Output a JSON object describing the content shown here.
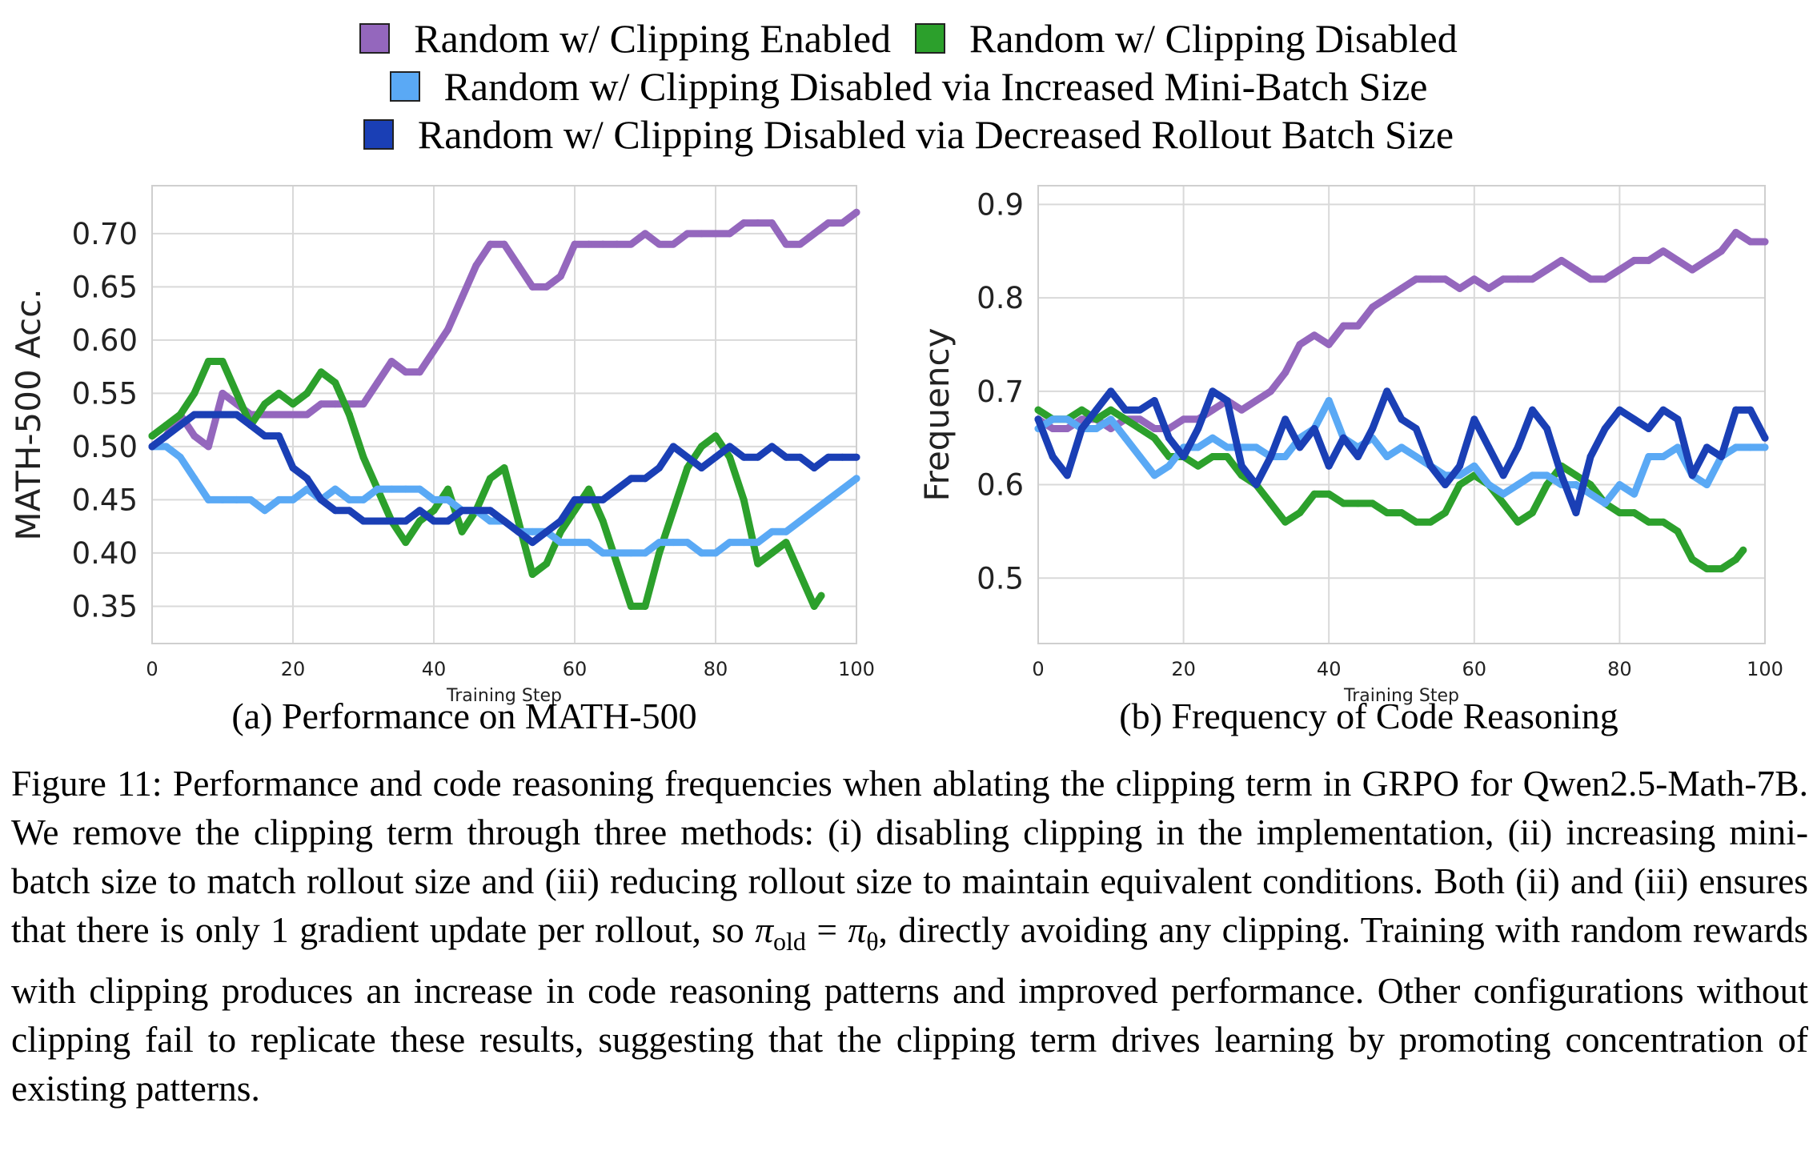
{
  "legend": {
    "rows": [
      [
        "clip_enabled",
        "clip_disabled"
      ],
      [
        "minibatch"
      ],
      [
        "rollout"
      ]
    ]
  },
  "series_styles": {
    "clip_enabled": {
      "label": "Random w/ Clipping Enabled",
      "color": "#9467bd"
    },
    "clip_disabled": {
      "label": "Random w/ Clipping Disabled",
      "color": "#2ca02c"
    },
    "minibatch": {
      "label": "Random w/ Clipping Disabled via Increased Mini-Batch Size",
      "color": "#5aa9f5"
    },
    "rollout": {
      "label": "Random w/ Clipping Disabled via Decreased Rollout Batch Size",
      "color": "#1a3fb5"
    }
  },
  "captions": {
    "a": "(a) Performance on MATH-500",
    "b": "(b) Frequency of Code Reasoning"
  },
  "figure_caption": {
    "lead": "Figure 11: Performance and code reasoning frequencies when ablating the clipping term in GRPO for Qwen2.5-Math-7B. We remove the clipping term through three methods: (i) disabling clipping in the implementation, (ii) increasing mini-batch size to match rollout size and (iii) reducing rollout size to maintain equivalent conditions. Both (ii) and (iii) ensures that there is only 1 gradient update per rollout, so ",
    "pi": "π",
    "old_sub": "old",
    "eq": " = ",
    "theta_sub": "θ",
    "tail": ", directly avoiding any clipping. Training with random rewards with clipping produces an increase in code reasoning patterns and improved performance. Other configurations without clipping fail to replicate these results, suggesting that the clipping term drives learning by promoting concentration of existing patterns."
  },
  "chart_data": [
    {
      "type": "line",
      "xlabel": "Training Step",
      "ylabel": "MATH-500 Acc.",
      "xlim": [
        0,
        100
      ],
      "ylim": [
        0.315,
        0.745
      ],
      "xticks": [
        0,
        20,
        40,
        60,
        80,
        100
      ],
      "xtick_labels": [
        "0",
        "20",
        "40",
        "60",
        "80",
        "100"
      ],
      "yticks": [
        0.35,
        0.4,
        0.45,
        0.5,
        0.55,
        0.6,
        0.65,
        0.7
      ],
      "ytick_labels": [
        "0.35",
        "0.40",
        "0.45",
        "0.50",
        "0.55",
        "0.60",
        "0.65",
        "0.70"
      ],
      "grid": true,
      "series": [
        {
          "key": "clip_enabled",
          "name": "Random w/ Clipping Enabled",
          "x": [
            0,
            2,
            4,
            6,
            8,
            10,
            12,
            14,
            16,
            18,
            20,
            22,
            24,
            26,
            28,
            30,
            32,
            34,
            36,
            38,
            40,
            42,
            44,
            46,
            48,
            50,
            52,
            54,
            56,
            58,
            60,
            62,
            64,
            66,
            68,
            70,
            72,
            74,
            76,
            78,
            80,
            82,
            84,
            86,
            88,
            90,
            92,
            94,
            96,
            98,
            100
          ],
          "y": [
            0.5,
            0.51,
            0.53,
            0.51,
            0.5,
            0.55,
            0.54,
            0.53,
            0.53,
            0.53,
            0.53,
            0.53,
            0.54,
            0.54,
            0.54,
            0.54,
            0.56,
            0.58,
            0.57,
            0.57,
            0.59,
            0.61,
            0.64,
            0.67,
            0.69,
            0.69,
            0.67,
            0.65,
            0.65,
            0.66,
            0.69,
            0.69,
            0.69,
            0.69,
            0.69,
            0.7,
            0.69,
            0.69,
            0.7,
            0.7,
            0.7,
            0.7,
            0.71,
            0.71,
            0.71,
            0.69,
            0.69,
            0.7,
            0.71,
            0.71,
            0.72
          ]
        },
        {
          "key": "clip_disabled",
          "name": "Random w/ Clipping Disabled",
          "x": [
            0,
            2,
            4,
            6,
            8,
            10,
            12,
            14,
            16,
            18,
            20,
            22,
            24,
            26,
            28,
            30,
            32,
            34,
            36,
            38,
            40,
            42,
            44,
            46,
            48,
            50,
            52,
            54,
            56,
            58,
            60,
            62,
            64,
            66,
            68,
            70,
            72,
            74,
            76,
            78,
            80,
            82,
            84,
            86,
            88,
            90,
            92,
            94,
            95
          ],
          "y": [
            0.51,
            0.52,
            0.53,
            0.55,
            0.58,
            0.58,
            0.55,
            0.52,
            0.54,
            0.55,
            0.54,
            0.55,
            0.57,
            0.56,
            0.53,
            0.49,
            0.46,
            0.43,
            0.41,
            0.43,
            0.44,
            0.46,
            0.42,
            0.44,
            0.47,
            0.48,
            0.43,
            0.38,
            0.39,
            0.42,
            0.44,
            0.46,
            0.43,
            0.39,
            0.35,
            0.35,
            0.4,
            0.44,
            0.48,
            0.5,
            0.51,
            0.49,
            0.45,
            0.39,
            0.4,
            0.41,
            0.38,
            0.35,
            0.36
          ]
        },
        {
          "key": "minibatch",
          "name": "Random w/ Clipping Disabled via Increased Mini-Batch Size",
          "x": [
            0,
            2,
            4,
            6,
            8,
            10,
            12,
            14,
            16,
            18,
            20,
            22,
            24,
            26,
            28,
            30,
            32,
            34,
            36,
            38,
            40,
            42,
            44,
            46,
            48,
            50,
            52,
            54,
            56,
            58,
            60,
            62,
            64,
            66,
            68,
            70,
            72,
            74,
            76,
            78,
            80,
            82,
            84,
            86,
            88,
            90,
            92,
            94,
            96,
            98,
            100
          ],
          "y": [
            0.5,
            0.5,
            0.49,
            0.47,
            0.45,
            0.45,
            0.45,
            0.45,
            0.44,
            0.45,
            0.45,
            0.46,
            0.45,
            0.46,
            0.45,
            0.45,
            0.46,
            0.46,
            0.46,
            0.46,
            0.45,
            0.45,
            0.44,
            0.44,
            0.43,
            0.43,
            0.42,
            0.42,
            0.42,
            0.41,
            0.41,
            0.41,
            0.4,
            0.4,
            0.4,
            0.4,
            0.41,
            0.41,
            0.41,
            0.4,
            0.4,
            0.41,
            0.41,
            0.41,
            0.42,
            0.42,
            0.43,
            0.44,
            0.45,
            0.46,
            0.47
          ]
        },
        {
          "key": "rollout",
          "name": "Random w/ Clipping Disabled via Decreased Rollout Batch Size",
          "x": [
            0,
            2,
            4,
            6,
            8,
            10,
            12,
            14,
            16,
            18,
            20,
            22,
            24,
            26,
            28,
            30,
            32,
            34,
            36,
            38,
            40,
            42,
            44,
            46,
            48,
            50,
            52,
            54,
            56,
            58,
            60,
            62,
            64,
            66,
            68,
            70,
            72,
            74,
            76,
            78,
            80,
            82,
            84,
            86,
            88,
            90,
            92,
            94,
            96,
            98,
            100
          ],
          "y": [
            0.5,
            0.51,
            0.52,
            0.53,
            0.53,
            0.53,
            0.53,
            0.52,
            0.51,
            0.51,
            0.48,
            0.47,
            0.45,
            0.44,
            0.44,
            0.43,
            0.43,
            0.43,
            0.43,
            0.44,
            0.43,
            0.43,
            0.44,
            0.44,
            0.44,
            0.43,
            0.42,
            0.41,
            0.42,
            0.43,
            0.45,
            0.45,
            0.45,
            0.46,
            0.47,
            0.47,
            0.48,
            0.5,
            0.49,
            0.48,
            0.49,
            0.5,
            0.49,
            0.49,
            0.5,
            0.49,
            0.49,
            0.48,
            0.49,
            0.49,
            0.49
          ]
        }
      ]
    },
    {
      "type": "line",
      "xlabel": "Training Step",
      "ylabel": "Frequency",
      "xlim": [
        0,
        100
      ],
      "ylim": [
        0.43,
        0.92
      ],
      "xticks": [
        0,
        20,
        40,
        60,
        80,
        100
      ],
      "xtick_labels": [
        "0",
        "20",
        "40",
        "60",
        "80",
        "100"
      ],
      "yticks": [
        0.5,
        0.6,
        0.7,
        0.8,
        0.9
      ],
      "ytick_labels": [
        "0.5",
        "0.6",
        "0.7",
        "0.8",
        "0.9"
      ],
      "grid": true,
      "series": [
        {
          "key": "clip_enabled",
          "name": "Random w/ Clipping Enabled",
          "x": [
            0,
            2,
            4,
            6,
            8,
            10,
            12,
            14,
            16,
            18,
            20,
            22,
            24,
            26,
            28,
            30,
            32,
            34,
            36,
            38,
            40,
            42,
            44,
            46,
            48,
            50,
            52,
            54,
            56,
            58,
            60,
            62,
            64,
            66,
            68,
            70,
            72,
            74,
            76,
            78,
            80,
            82,
            84,
            86,
            88,
            90,
            92,
            94,
            96,
            98,
            100
          ],
          "y": [
            0.67,
            0.66,
            0.66,
            0.67,
            0.67,
            0.66,
            0.67,
            0.67,
            0.66,
            0.66,
            0.67,
            0.67,
            0.68,
            0.69,
            0.68,
            0.69,
            0.7,
            0.72,
            0.75,
            0.76,
            0.75,
            0.77,
            0.77,
            0.79,
            0.8,
            0.81,
            0.82,
            0.82,
            0.82,
            0.81,
            0.82,
            0.81,
            0.82,
            0.82,
            0.82,
            0.83,
            0.84,
            0.83,
            0.82,
            0.82,
            0.83,
            0.84,
            0.84,
            0.85,
            0.84,
            0.83,
            0.84,
            0.85,
            0.87,
            0.86,
            0.86
          ]
        },
        {
          "key": "clip_disabled",
          "name": "Random w/ Clipping Disabled",
          "x": [
            0,
            2,
            4,
            6,
            8,
            10,
            12,
            14,
            16,
            18,
            20,
            22,
            24,
            26,
            28,
            30,
            32,
            34,
            36,
            38,
            40,
            42,
            44,
            46,
            48,
            50,
            52,
            54,
            56,
            58,
            60,
            62,
            64,
            66,
            68,
            70,
            72,
            74,
            76,
            78,
            80,
            82,
            84,
            86,
            88,
            90,
            92,
            94,
            96,
            97
          ],
          "y": [
            0.68,
            0.67,
            0.67,
            0.68,
            0.67,
            0.68,
            0.67,
            0.66,
            0.65,
            0.63,
            0.63,
            0.62,
            0.63,
            0.63,
            0.61,
            0.6,
            0.58,
            0.56,
            0.57,
            0.59,
            0.59,
            0.58,
            0.58,
            0.58,
            0.57,
            0.57,
            0.56,
            0.56,
            0.57,
            0.6,
            0.61,
            0.6,
            0.58,
            0.56,
            0.57,
            0.6,
            0.62,
            0.61,
            0.6,
            0.58,
            0.57,
            0.57,
            0.56,
            0.56,
            0.55,
            0.52,
            0.51,
            0.51,
            0.52,
            0.53
          ]
        },
        {
          "key": "minibatch",
          "name": "Random w/ Clipping Disabled via Increased Mini-Batch Size",
          "x": [
            0,
            2,
            4,
            6,
            8,
            10,
            12,
            14,
            16,
            18,
            20,
            22,
            24,
            26,
            28,
            30,
            32,
            34,
            36,
            38,
            40,
            42,
            44,
            46,
            48,
            50,
            52,
            54,
            56,
            58,
            60,
            62,
            64,
            66,
            68,
            70,
            72,
            74,
            76,
            78,
            80,
            82,
            84,
            86,
            88,
            90,
            92,
            94,
            96,
            98,
            100
          ],
          "y": [
            0.66,
            0.67,
            0.67,
            0.66,
            0.66,
            0.67,
            0.65,
            0.63,
            0.61,
            0.62,
            0.64,
            0.64,
            0.65,
            0.64,
            0.64,
            0.64,
            0.63,
            0.63,
            0.65,
            0.66,
            0.69,
            0.65,
            0.64,
            0.65,
            0.63,
            0.64,
            0.63,
            0.62,
            0.61,
            0.61,
            0.62,
            0.6,
            0.59,
            0.6,
            0.61,
            0.61,
            0.6,
            0.6,
            0.59,
            0.58,
            0.6,
            0.59,
            0.63,
            0.63,
            0.64,
            0.61,
            0.6,
            0.63,
            0.64,
            0.64,
            0.64
          ]
        },
        {
          "key": "rollout",
          "name": "Random w/ Clipping Disabled via Decreased Rollout Batch Size",
          "x": [
            0,
            2,
            4,
            6,
            8,
            10,
            12,
            14,
            16,
            18,
            20,
            22,
            24,
            26,
            28,
            30,
            32,
            34,
            36,
            38,
            40,
            42,
            44,
            46,
            48,
            50,
            52,
            54,
            56,
            58,
            60,
            62,
            64,
            66,
            68,
            70,
            72,
            74,
            76,
            78,
            80,
            82,
            84,
            86,
            88,
            90,
            92,
            94,
            96,
            98,
            100
          ],
          "y": [
            0.67,
            0.63,
            0.61,
            0.66,
            0.68,
            0.7,
            0.68,
            0.68,
            0.69,
            0.65,
            0.63,
            0.66,
            0.7,
            0.69,
            0.62,
            0.6,
            0.63,
            0.67,
            0.64,
            0.66,
            0.62,
            0.65,
            0.63,
            0.66,
            0.7,
            0.67,
            0.66,
            0.62,
            0.6,
            0.62,
            0.67,
            0.64,
            0.61,
            0.64,
            0.68,
            0.66,
            0.61,
            0.57,
            0.63,
            0.66,
            0.68,
            0.67,
            0.66,
            0.68,
            0.67,
            0.61,
            0.64,
            0.63,
            0.68,
            0.68,
            0.65
          ]
        }
      ]
    }
  ]
}
